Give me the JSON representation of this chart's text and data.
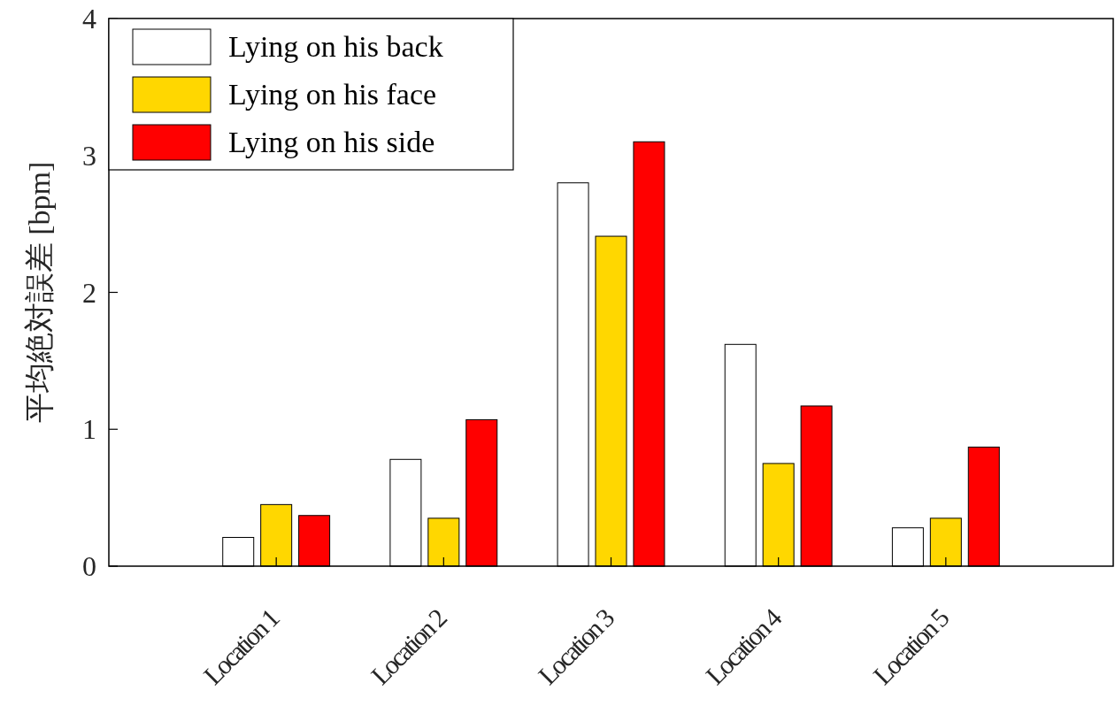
{
  "chart_data": {
    "type": "bar",
    "ylabel": "平均絶対誤差 [bpm]",
    "categories": [
      "Location 1",
      "Location 2",
      "Location 3",
      "Location 4",
      "Location 5"
    ],
    "series": [
      {
        "name": "Lying on his back",
        "color": "#ffffff",
        "values": [
          0.21,
          0.78,
          2.8,
          1.62,
          0.28
        ]
      },
      {
        "name": "Lying on his face",
        "color": "#ffd700",
        "values": [
          0.45,
          0.35,
          2.41,
          0.75,
          0.35
        ]
      },
      {
        "name": "Lying on his side",
        "color": "#ff0000",
        "values": [
          0.37,
          1.07,
          3.1,
          1.17,
          0.87
        ]
      }
    ],
    "ylim": [
      0,
      4
    ],
    "yticks": [
      0,
      1,
      2,
      3,
      4
    ],
    "grid": false,
    "legend": "top left"
  }
}
